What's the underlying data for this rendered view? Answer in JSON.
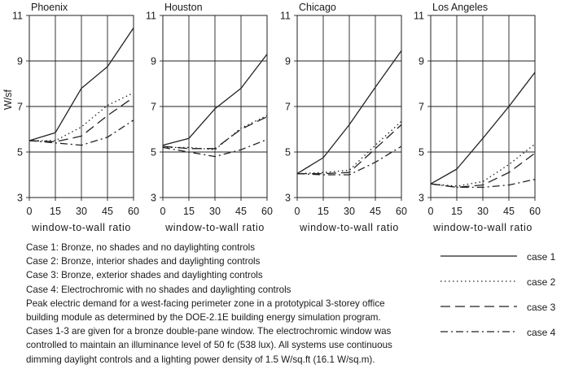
{
  "chart_data": [
    {
      "type": "line",
      "title": "Phoenix",
      "xlabel": "window-to-wall ratio",
      "ylabel": "W/sf",
      "x": [
        0,
        15,
        30,
        45,
        60
      ],
      "xlim": [
        0,
        60
      ],
      "ylim": [
        3,
        11
      ],
      "xticks": [
        "0",
        "15",
        "30",
        "45",
        "60"
      ],
      "yticks": [
        "3",
        "5",
        "7",
        "9",
        "11"
      ],
      "grid": true,
      "series": [
        {
          "name": "case 1",
          "values": [
            5.5,
            5.85,
            7.8,
            8.75,
            10.45
          ]
        },
        {
          "name": "case 2",
          "values": [
            5.5,
            5.5,
            6.1,
            7.05,
            7.6
          ]
        },
        {
          "name": "case 3",
          "values": [
            5.5,
            5.45,
            5.7,
            6.6,
            7.4
          ]
        },
        {
          "name": "case 4",
          "values": [
            5.5,
            5.4,
            5.3,
            5.65,
            6.4
          ]
        }
      ]
    },
    {
      "type": "line",
      "title": "Houston",
      "xlabel": "window-to-wall ratio",
      "ylabel": "",
      "x": [
        0,
        15,
        30,
        45,
        60
      ],
      "xlim": [
        0,
        60
      ],
      "ylim": [
        3,
        11
      ],
      "xticks": [
        "0",
        "15",
        "30",
        "45",
        "60"
      ],
      "yticks": [
        "3",
        "5",
        "7",
        "9",
        "11"
      ],
      "grid": true,
      "series": [
        {
          "name": "case 1",
          "values": [
            5.3,
            5.6,
            6.9,
            7.8,
            9.3
          ]
        },
        {
          "name": "case 2",
          "values": [
            5.2,
            5.2,
            5.1,
            6.05,
            6.6
          ]
        },
        {
          "name": "case 3",
          "values": [
            5.25,
            5.15,
            5.15,
            6.0,
            6.55
          ]
        },
        {
          "name": "case 4",
          "values": [
            5.2,
            5.0,
            4.8,
            5.1,
            5.55
          ]
        }
      ]
    },
    {
      "type": "line",
      "title": "Chicago",
      "xlabel": "window-to-wall ratio",
      "ylabel": "",
      "x": [
        0,
        15,
        30,
        45,
        60
      ],
      "xlim": [
        0,
        60
      ],
      "ylim": [
        3,
        11
      ],
      "xticks": [
        "0",
        "15",
        "30",
        "45",
        "60"
      ],
      "yticks": [
        "3",
        "5",
        "7",
        "9",
        "11"
      ],
      "grid": true,
      "series": [
        {
          "name": "case 1",
          "values": [
            4.05,
            4.75,
            6.2,
            7.85,
            9.45
          ]
        },
        {
          "name": "case 2",
          "values": [
            4.05,
            4.1,
            4.2,
            5.3,
            6.35
          ]
        },
        {
          "name": "case 3",
          "values": [
            4.05,
            4.05,
            4.1,
            5.15,
            6.2
          ]
        },
        {
          "name": "case 4",
          "values": [
            4.05,
            4.0,
            4.0,
            4.55,
            5.25
          ]
        }
      ]
    },
    {
      "type": "line",
      "title": "Los Angeles",
      "xlabel": "window-to-wall ratio",
      "ylabel": "",
      "x": [
        0,
        15,
        30,
        45,
        60
      ],
      "xlim": [
        0,
        60
      ],
      "ylim": [
        3,
        11
      ],
      "xticks": [
        "0",
        "15",
        "30",
        "45",
        "60"
      ],
      "yticks": [
        "3",
        "5",
        "7",
        "9",
        "11"
      ],
      "grid": true,
      "series": [
        {
          "name": "case 1",
          "values": [
            3.6,
            4.25,
            5.6,
            7.0,
            8.5
          ]
        },
        {
          "name": "case 2",
          "values": [
            3.6,
            3.5,
            3.7,
            4.45,
            5.35
          ]
        },
        {
          "name": "case 3",
          "values": [
            3.6,
            3.45,
            3.55,
            4.1,
            4.95
          ]
        },
        {
          "name": "case 4",
          "values": [
            3.6,
            3.45,
            3.45,
            3.55,
            3.8
          ]
        }
      ]
    }
  ],
  "legend": {
    "position": "bottom-right",
    "items": [
      {
        "label": "case 1",
        "style": "solid"
      },
      {
        "label": "case 2",
        "style": "dotted"
      },
      {
        "label": "case 3",
        "style": "dashed"
      },
      {
        "label": "case 4",
        "style": "dash-dot"
      }
    ]
  },
  "caption_lines": [
    "Case 1: Bronze, no shades and no daylighting controls",
    "Case 2: Bronze, interior shades and daylighting controls",
    "Case 3: Bronze, exterior shades and daylighting controls",
    "Case 4: Electrochromic with no shades and daylighting controls",
    "Peak electric demand for a west-facing perimeter zone in a prototypical 3-storey office",
    "building module as determined by the DOE-2.1E building energy simulation program.",
    "Cases 1-3 are given for a bronze double-pane window.  The electrochromic window was",
    "controlled to maintain an illuminance level of 50 fc (538 lux).  All systems use continuous",
    "dimming daylight controls and a lighting power density of 1.5 W/sq.ft (16.1 W/sq.m)."
  ],
  "colors": {
    "line": "#222222",
    "grid": "#222222"
  }
}
